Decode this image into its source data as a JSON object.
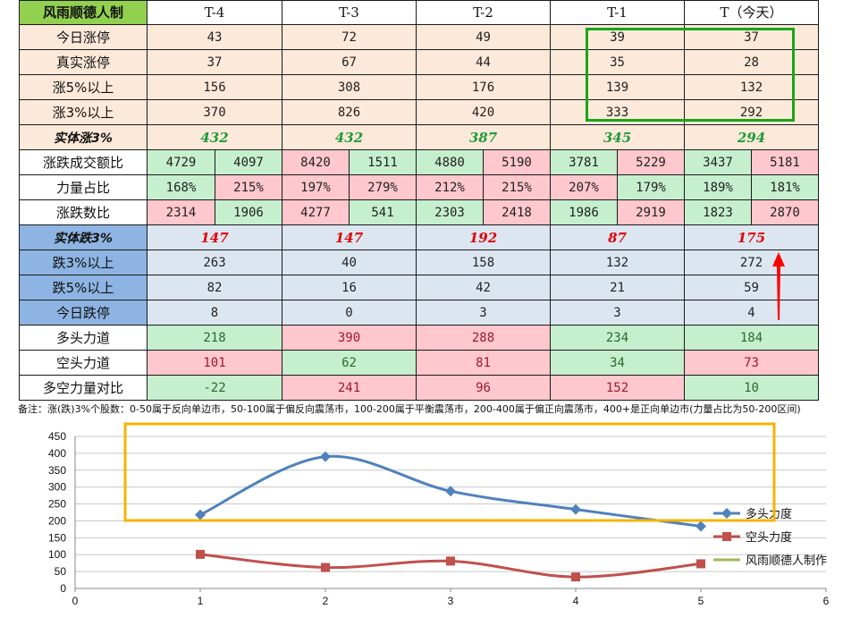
{
  "table": {
    "corner_label": "风雨顺德人制",
    "columns": [
      "T-4",
      "T-3",
      "T-2",
      "T-1",
      "T（今天）"
    ],
    "colors": {
      "peach": "#fde9d9",
      "green_cell": "#c6efce",
      "red_cell": "#ffc7ce",
      "blue_row": "#dce6f1",
      "blue_label": "#8db4e2",
      "header_label": "#92d050",
      "highlight_green": "#1aa51a",
      "red_text": "#e00000",
      "green_text": "#1e9b3a"
    },
    "rows": [
      {
        "label": "今日涨停",
        "style": "peach",
        "values": [
          "43",
          "72",
          "49",
          "39",
          "37"
        ]
      },
      {
        "label": "真实涨停",
        "style": "peach",
        "values": [
          "37",
          "67",
          "44",
          "35",
          "28"
        ]
      },
      {
        "label": "涨5%以上",
        "style": "peach",
        "values": [
          "156",
          "308",
          "176",
          "139",
          "132"
        ]
      },
      {
        "label": "涨3%以上",
        "style": "peach",
        "values": [
          "370",
          "826",
          "420",
          "333",
          "292"
        ]
      },
      {
        "label": "实体涨3%",
        "style": "peach-bold",
        "values": [
          "432",
          "432",
          "387",
          "345",
          "294"
        ]
      },
      {
        "label": "涨跌成交额比",
        "style": "split",
        "pairs": [
          [
            "4729",
            "4097"
          ],
          [
            "8420",
            "1511"
          ],
          [
            "4880",
            "5190"
          ],
          [
            "3781",
            "5229"
          ],
          [
            "3437",
            "5181"
          ]
        ],
        "pair_colors": [
          [
            "green",
            "green"
          ],
          [
            "red",
            "green"
          ],
          [
            "green",
            "red"
          ],
          [
            "green",
            "red"
          ],
          [
            "green",
            "red"
          ]
        ]
      },
      {
        "label": "力量占比",
        "style": "split",
        "pairs": [
          [
            "168%",
            "215%"
          ],
          [
            "197%",
            "279%"
          ],
          [
            "212%",
            "215%"
          ],
          [
            "207%",
            "179%"
          ],
          [
            "189%",
            "181%"
          ]
        ],
        "pair_colors": [
          [
            "green",
            "red"
          ],
          [
            "red",
            "red"
          ],
          [
            "red",
            "red"
          ],
          [
            "red",
            "green"
          ],
          [
            "green",
            "green"
          ]
        ]
      },
      {
        "label": "涨跌数比",
        "style": "split",
        "pairs": [
          [
            "2314",
            "1906"
          ],
          [
            "4277",
            "541"
          ],
          [
            "2303",
            "2418"
          ],
          [
            "1986",
            "2919"
          ],
          [
            "1823",
            "2870"
          ]
        ],
        "pair_colors": [
          [
            "red",
            "green"
          ],
          [
            "red",
            "green"
          ],
          [
            "green",
            "red"
          ],
          [
            "green",
            "red"
          ],
          [
            "green",
            "red"
          ]
        ]
      },
      {
        "label": "实体跌3%",
        "style": "blue-bold",
        "values": [
          "147",
          "147",
          "192",
          "87",
          "175"
        ]
      },
      {
        "label": "跌3%以上",
        "style": "blue",
        "values": [
          "263",
          "40",
          "158",
          "132",
          "272"
        ]
      },
      {
        "label": "跌5%以上",
        "style": "blue",
        "values": [
          "82",
          "16",
          "42",
          "21",
          "59"
        ]
      },
      {
        "label": "今日跌停",
        "style": "blue",
        "values": [
          "8",
          "0",
          "3",
          "3",
          "4"
        ]
      },
      {
        "label": "多头力道",
        "style": "color",
        "values": [
          "218",
          "390",
          "288",
          "234",
          "184"
        ],
        "cell_colors": [
          "green",
          "red",
          "red",
          "green",
          "green"
        ]
      },
      {
        "label": "空头力道",
        "style": "color",
        "values": [
          "101",
          "62",
          "81",
          "34",
          "73"
        ],
        "cell_colors": [
          "red",
          "green",
          "red",
          "green",
          "red"
        ]
      },
      {
        "label": "多空力量对比",
        "style": "color",
        "values": [
          "-22",
          "241",
          "96",
          "152",
          "10"
        ],
        "cell_colors": [
          "green",
          "red",
          "red",
          "red",
          "green"
        ]
      }
    ],
    "note": "备注：涨(跌)3%个股数：0-50属于反向单边市，50-100属于偏反向震荡市，100-200属于平衡震荡市，200-400属于偏正向震荡市，400+是正向单边市(力量占比为50-200区间)"
  },
  "chart_data": {
    "type": "line",
    "x_ticks": [
      "0",
      "1",
      "2",
      "3",
      "4",
      "5",
      "6"
    ],
    "y_ticks": [
      "0",
      "50",
      "100",
      "150",
      "200",
      "250",
      "300",
      "350",
      "400",
      "450"
    ],
    "xlim": [
      0,
      6
    ],
    "ylim": [
      0,
      450
    ],
    "grid": true,
    "legend_position": "right",
    "series": [
      {
        "name": "多头力度",
        "color": "#4f81bd",
        "marker": "diamond",
        "x": [
          1,
          2,
          3,
          4,
          5
        ],
        "y": [
          218,
          390,
          288,
          234,
          184
        ]
      },
      {
        "name": "空头力度",
        "color": "#c0504d",
        "marker": "square",
        "x": [
          1,
          2,
          3,
          4,
          5
        ],
        "y": [
          101,
          62,
          81,
          34,
          73
        ]
      },
      {
        "name": "风雨顺德人制作",
        "color": "#9bbb59",
        "marker": "none",
        "x": [],
        "y": []
      }
    ]
  }
}
